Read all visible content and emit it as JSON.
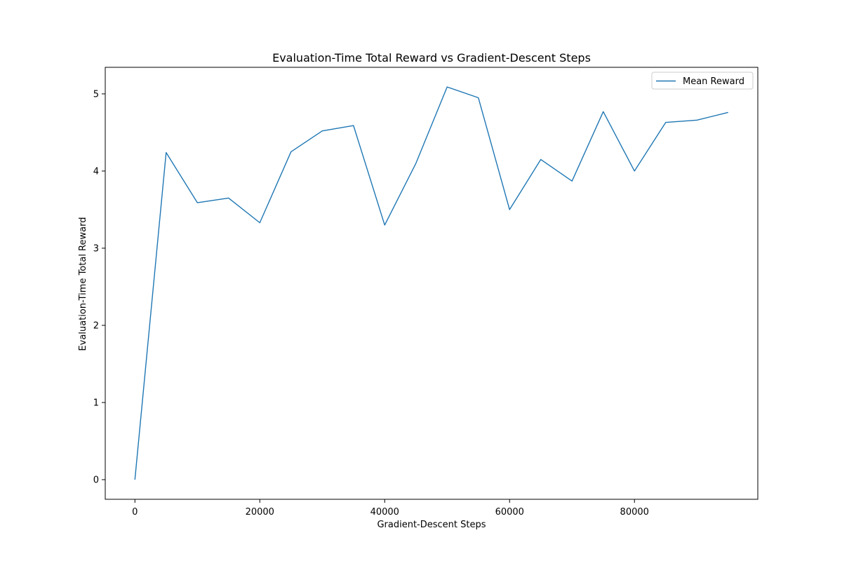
{
  "chart_data": {
    "type": "line",
    "title": "Evaluation-Time Total Reward vs Gradient-Descent Steps",
    "xlabel": "Gradient-Descent Steps",
    "ylabel": "Evaluation-Time Total Reward",
    "x": [
      0,
      5000,
      10000,
      15000,
      20000,
      25000,
      30000,
      35000,
      40000,
      45000,
      50000,
      55000,
      60000,
      65000,
      70000,
      75000,
      80000,
      85000,
      90000,
      95000
    ],
    "series": [
      {
        "name": "Mean Reward",
        "color": "#1f77b4",
        "values": [
          0.0,
          4.24,
          3.59,
          3.65,
          3.33,
          4.25,
          4.52,
          4.59,
          3.3,
          4.1,
          5.09,
          4.95,
          3.5,
          4.15,
          3.87,
          4.77,
          4.0,
          4.63,
          4.66,
          4.76
        ]
      }
    ],
    "xlim": [
      -4750,
      99750
    ],
    "ylim": [
      -0.2545,
      5.3445
    ],
    "xticks": [
      0,
      20000,
      40000,
      60000,
      80000
    ],
    "xtick_labels": [
      "0",
      "20000",
      "40000",
      "60000",
      "80000"
    ],
    "yticks": [
      0,
      1,
      2,
      3,
      4,
      5
    ],
    "ytick_labels": [
      "0",
      "1",
      "2",
      "3",
      "4",
      "5"
    ],
    "grid": false,
    "legend_position": "upper right"
  }
}
